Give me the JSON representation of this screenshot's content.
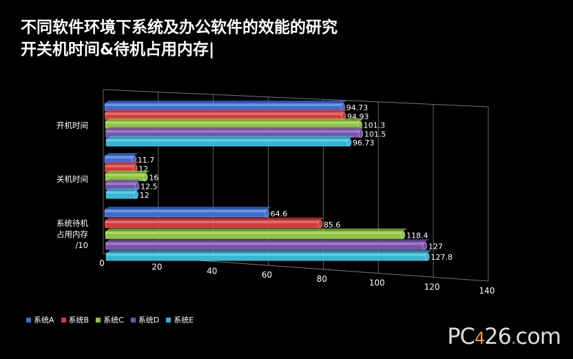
{
  "title_line1": "不同软件环境下系统及办公软件的效能的研究",
  "title_line2": "开关机时间&待机占用内存|",
  "watermark": "PC426.com",
  "chart_data": {
    "type": "bar",
    "orientation": "horizontal",
    "categories": [
      "开机时间",
      "关机时间",
      "系统待机占用内存/10"
    ],
    "category_label_lines": [
      [
        "开机时间"
      ],
      [
        "关机时间"
      ],
      [
        "系统待机",
        "占用内存",
        "/10"
      ]
    ],
    "series": [
      {
        "name": "系统A",
        "color": "#3a6fd8",
        "values": [
          94.73,
          11.7,
          64.6
        ]
      },
      {
        "name": "系统B",
        "color": "#d83a3a",
        "values": [
          94.93,
          12,
          85.6
        ]
      },
      {
        "name": "系统C",
        "color": "#8cc63a",
        "values": [
          101.3,
          16,
          118.4
        ]
      },
      {
        "name": "系统D",
        "color": "#7a4fb0",
        "values": [
          101.5,
          12.5,
          127
        ]
      },
      {
        "name": "系统E",
        "color": "#2fb8d8",
        "values": [
          96.73,
          12,
          127.8
        ]
      }
    ],
    "value_labels": [
      [
        "94.73",
        "11.7",
        "64.6"
      ],
      [
        "94.93",
        "12",
        "85.6"
      ],
      [
        "101.3",
        "16",
        "118.4"
      ],
      [
        "101.5",
        "12.5",
        "127"
      ],
      [
        "96.73",
        "12",
        "127.8"
      ]
    ],
    "xlim": [
      0,
      140
    ],
    "xticks": [
      "0",
      "20",
      "40",
      "60",
      "80",
      "100",
      "120",
      "140"
    ],
    "grid": true,
    "legend_position": "bottom"
  }
}
